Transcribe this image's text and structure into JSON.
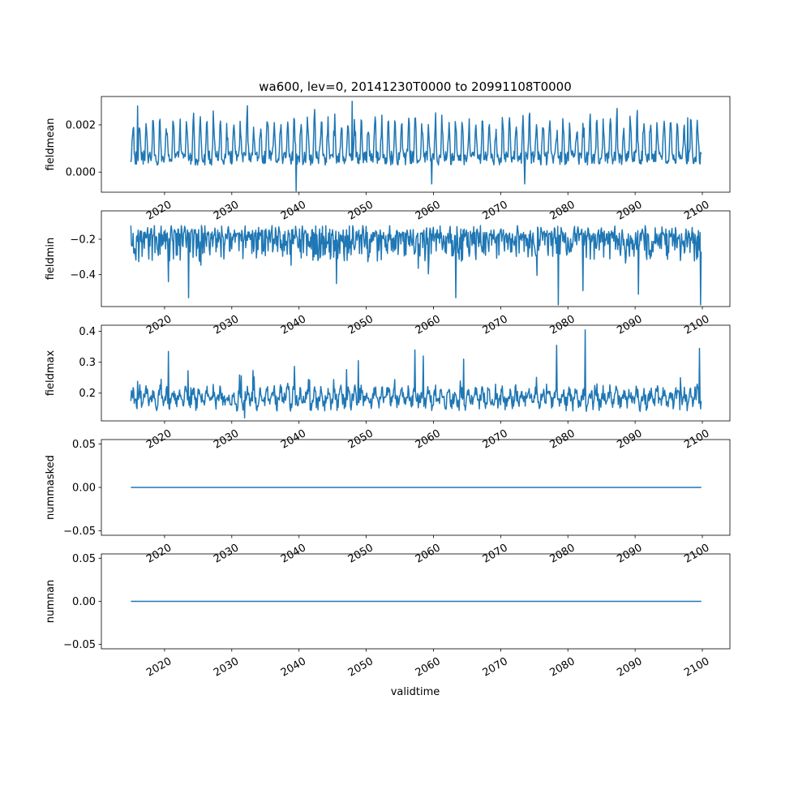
{
  "figure": {
    "title": "wa600, lev=0, 20141230T0000 to 20991108T0000",
    "xlabel": "validtime",
    "line_color": "#1f77b4"
  },
  "chart_data": [
    {
      "type": "line",
      "ylabel": "fieldmean",
      "xlim": [
        2010.6,
        2104.1
      ],
      "ylim": [
        -0.00085,
        0.0032
      ],
      "yticks": [
        0.0,
        0.002
      ],
      "ytick_labels": [
        "0.000",
        "0.002"
      ],
      "xticks": [
        2020,
        2030,
        2040,
        2050,
        2060,
        2070,
        2080,
        2090,
        2100
      ],
      "xtick_labels": [
        "2020",
        "2030",
        "2040",
        "2050",
        "2060",
        "2070",
        "2080",
        "2090",
        "2100"
      ],
      "x_range": [
        2014.99,
        2099.85
      ],
      "series": [
        {
          "pattern": "seasonal",
          "base": 0.0006,
          "amplitude": 0.0015,
          "noise": 0.0003,
          "extremes": [
            [
              2039.6,
              -0.0008
            ],
            [
              2047.9,
              0.003
            ],
            [
              2016.0,
              0.0028
            ],
            [
              2059.7,
              -0.0005
            ],
            [
              2073.6,
              -0.0005
            ],
            [
              2097.8,
              0.0023
            ]
          ],
          "values": []
        }
      ]
    },
    {
      "type": "line",
      "ylabel": "fieldmin",
      "xlim": [
        2010.6,
        2104.1
      ],
      "ylim": [
        -0.58,
        -0.04
      ],
      "yticks": [
        -0.4,
        -0.2
      ],
      "ytick_labels": [
        "−0.4",
        "−0.2"
      ],
      "xticks": [
        2020,
        2030,
        2040,
        2050,
        2060,
        2070,
        2080,
        2090,
        2100
      ],
      "xtick_labels": [
        "2020",
        "2030",
        "2040",
        "2050",
        "2060",
        "2070",
        "2080",
        "2090",
        "2100"
      ],
      "x_range": [
        2014.99,
        2099.85
      ],
      "series": [
        {
          "pattern": "noisy-min",
          "base": -0.12,
          "amplitude": 0.05,
          "noise": 0.1,
          "extremes": [
            [
              2023.6,
              -0.53
            ],
            [
              2063.3,
              -0.53
            ],
            [
              2078.6,
              -0.57
            ],
            [
              2082.2,
              -0.49
            ],
            [
              2090.5,
              -0.51
            ],
            [
              2099.7,
              -0.57
            ],
            [
              2020.6,
              -0.44
            ],
            [
              2045.6,
              -0.45
            ]
          ],
          "values": []
        }
      ]
    },
    {
      "type": "line",
      "ylabel": "fieldmax",
      "xlim": [
        2010.6,
        2104.1
      ],
      "ylim": [
        0.11,
        0.42
      ],
      "yticks": [
        0.2,
        0.3,
        0.4
      ],
      "ytick_labels": [
        "0.2",
        "0.3",
        "0.4"
      ],
      "xticks": [
        2020,
        2030,
        2040,
        2050,
        2060,
        2070,
        2080,
        2090,
        2100
      ],
      "xtick_labels": [
        "2020",
        "2030",
        "2040",
        "2050",
        "2060",
        "2070",
        "2080",
        "2090",
        "2100"
      ],
      "x_range": [
        2014.99,
        2099.85
      ],
      "series": [
        {
          "pattern": "noisy-max",
          "base": 0.18,
          "amplitude": 0.02,
          "noise": 0.035,
          "extremes": [
            [
              2082.6,
              0.405
            ],
            [
              2078.3,
              0.355
            ],
            [
              2020.6,
              0.335
            ],
            [
              2099.6,
              0.345
            ],
            [
              2064.5,
              0.31
            ],
            [
              2057.2,
              0.34
            ],
            [
              2048.8,
              0.305
            ],
            [
              2031.9,
              0.12
            ],
            [
              2058.5,
              0.32
            ]
          ],
          "values": []
        }
      ]
    },
    {
      "type": "line",
      "ylabel": "nummasked",
      "xlim": [
        2010.6,
        2104.1
      ],
      "ylim": [
        -0.055,
        0.055
      ],
      "yticks": [
        -0.05,
        0.0,
        0.05
      ],
      "ytick_labels": [
        "−0.05",
        "0.00",
        "0.05"
      ],
      "xticks": [
        2020,
        2030,
        2040,
        2050,
        2060,
        2070,
        2080,
        2090,
        2100
      ],
      "xtick_labels": [
        "2020",
        "2030",
        "2040",
        "2050",
        "2060",
        "2070",
        "2080",
        "2090",
        "2100"
      ],
      "x_range": [
        2014.99,
        2099.85
      ],
      "series": [
        {
          "pattern": "constant",
          "base": 0.0,
          "values": [
            [
              2014.99,
              0.0
            ],
            [
              2099.85,
              0.0
            ]
          ]
        }
      ]
    },
    {
      "type": "line",
      "ylabel": "numnan",
      "xlim": [
        2010.6,
        2104.1
      ],
      "ylim": [
        -0.055,
        0.055
      ],
      "yticks": [
        -0.05,
        0.0,
        0.05
      ],
      "ytick_labels": [
        "−0.05",
        "0.00",
        "0.05"
      ],
      "xticks": [
        2020,
        2030,
        2040,
        2050,
        2060,
        2070,
        2080,
        2090,
        2100
      ],
      "xtick_labels": [
        "2020",
        "2030",
        "2040",
        "2050",
        "2060",
        "2070",
        "2080",
        "2090",
        "2100"
      ],
      "x_range": [
        2014.99,
        2099.85
      ],
      "series": [
        {
          "pattern": "constant",
          "base": 0.0,
          "values": [
            [
              2014.99,
              0.0
            ],
            [
              2099.85,
              0.0
            ]
          ]
        }
      ]
    }
  ]
}
